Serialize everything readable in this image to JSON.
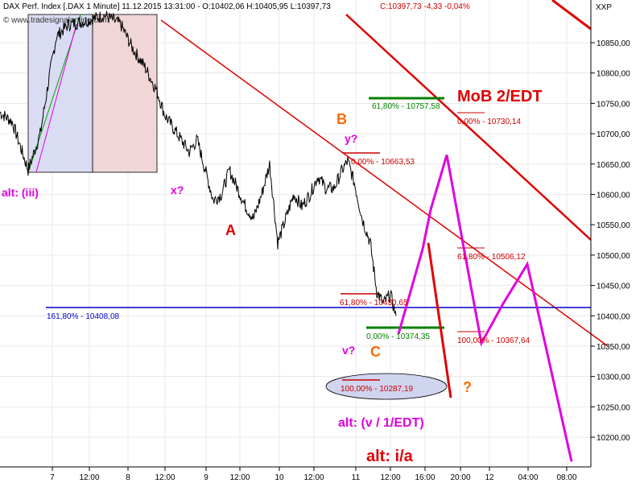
{
  "header": {
    "title": "DAX Perf. Index [.DAX  1 Minute]  11.12.2015 13:31:00 - O:10402,06 H:10405,95 L:10397,73",
    "close_info": "C:10397,73 -4,33 -0,04%",
    "copyright": "© www.tradesignalonline.com",
    "symbol": "XXP"
  },
  "chart_data": {
    "type": "line",
    "ylim": [
      10145,
      10898
    ],
    "y_ticks": [
      "10850,00",
      "10800,00",
      "10750,00",
      "10700,00",
      "10650,00",
      "10600,00",
      "10550,00",
      "10500,00",
      "10450,00",
      "10400,00",
      "10350,00",
      "10300,00",
      "10250,00",
      "10200,00"
    ],
    "y_tick_values": [
      10850,
      10800,
      10750,
      10700,
      10650,
      10600,
      10550,
      10500,
      10450,
      10400,
      10350,
      10300,
      10250,
      10200
    ],
    "x_ticks": [
      "7",
      "12:00",
      "8",
      "12:00",
      "9",
      "12:00",
      "10",
      "12:00",
      "11",
      "12:00",
      "16:00",
      "20:00",
      "12",
      "04:00",
      "08:00"
    ],
    "price_path": [
      [
        0,
        10735
      ],
      [
        15,
        10720
      ],
      [
        25,
        10680
      ],
      [
        35,
        10640
      ],
      [
        50,
        10700
      ],
      [
        62,
        10800
      ],
      [
        70,
        10860
      ],
      [
        85,
        10880
      ],
      [
        105,
        10885
      ],
      [
        130,
        10895
      ],
      [
        150,
        10880
      ],
      [
        165,
        10840
      ],
      [
        180,
        10810
      ],
      [
        195,
        10770
      ],
      [
        205,
        10730
      ],
      [
        220,
        10700
      ],
      [
        235,
        10670
      ],
      [
        245,
        10690
      ],
      [
        255,
        10640
      ],
      [
        265,
        10590
      ],
      [
        275,
        10600
      ],
      [
        285,
        10640
      ],
      [
        295,
        10610
      ],
      [
        305,
        10580
      ],
      [
        315,
        10560
      ],
      [
        325,
        10600
      ],
      [
        335,
        10650
      ],
      [
        345,
        10520
      ],
      [
        355,
        10560
      ],
      [
        365,
        10600
      ],
      [
        375,
        10580
      ],
      [
        385,
        10600
      ],
      [
        395,
        10630
      ],
      [
        405,
        10610
      ],
      [
        415,
        10610
      ],
      [
        425,
        10640
      ],
      [
        432,
        10655
      ],
      [
        440,
        10620
      ],
      [
        450,
        10560
      ],
      [
        460,
        10520
      ],
      [
        468,
        10440
      ],
      [
        476,
        10420
      ],
      [
        485,
        10435
      ],
      [
        492,
        10400
      ]
    ],
    "levels": [
      {
        "label": "161,80% - 10408,08",
        "value": 10408.08,
        "color": "#0000cc"
      },
      {
        "label": "61,80% - 10757,58",
        "value": 10757.58,
        "color": "#008000"
      },
      {
        "label": "0,00% - 10730,14",
        "value": 10730.14,
        "color": "#cc0000"
      },
      {
        "label": "0,00% - 10663,53",
        "value": 10663.53,
        "color": "#cc0000"
      },
      {
        "label": "61,80% - 10506,12",
        "value": 10506.12,
        "color": "#cc0000"
      },
      {
        "label": "61,80% - 10430,65",
        "value": 10430.65,
        "color": "#cc0000"
      },
      {
        "label": "0,00% - 10374,35",
        "value": 10374.35,
        "color": "#008000"
      },
      {
        "label": "100,00% - 10367,64",
        "value": 10367.64,
        "color": "#cc0000"
      },
      {
        "label": "100,00% - 10287,19",
        "value": 10287.19,
        "color": "#cc0000"
      }
    ],
    "projection_magenta": [
      [
        495,
        10370
      ],
      [
        525,
        10510
      ],
      [
        535,
        10575
      ],
      [
        555,
        10665
      ],
      [
        575,
        10520
      ],
      [
        598,
        10355
      ],
      [
        625,
        10420
      ],
      [
        655,
        10485
      ],
      [
        710,
        10160
      ]
    ],
    "projection_red": [
      [
        532,
        10520
      ],
      [
        560,
        10265
      ]
    ]
  },
  "labels": {
    "alt_iii": "alt: (iii)",
    "x_q": "x?",
    "a": "A",
    "b": "B",
    "y_q": "y?",
    "v_q": "v?",
    "c": "C",
    "q": "?",
    "mob": "MoB 2/EDT",
    "alt_v": "alt: (v / 1/EDT)",
    "alt_ia": "alt: i/a"
  },
  "colors": {
    "price": "#000000",
    "red": "#e00000",
    "magenta": "#e000e0",
    "blue": "#0000cc",
    "green": "#008000",
    "orange": "#ff6a00",
    "grid": "#d8d8d8",
    "box_blue": "#d9dcf2",
    "box_red": "#f0d6d6",
    "ellipse": "#cfd4ef"
  }
}
